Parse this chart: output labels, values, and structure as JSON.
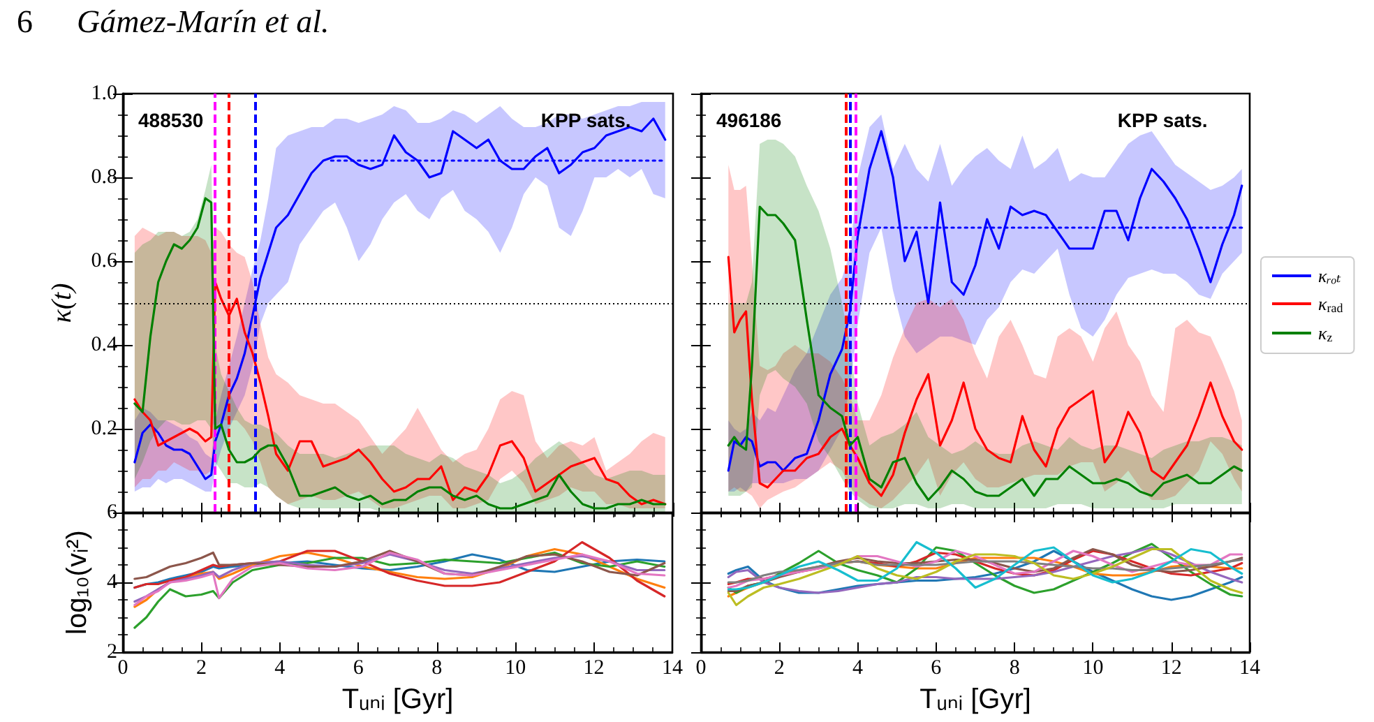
{
  "chart_data": [
    {
      "type": "line",
      "annotations": [
        "488530",
        "KPP sats.",
        "6",
        "Gámez-Marín et al."
      ],
      "ylabel": "κ(t)",
      "x": [
        0.3,
        0.5,
        0.7,
        0.9,
        1.1,
        1.3,
        1.5,
        1.7,
        1.9,
        2.1,
        2.25,
        2.35,
        2.5,
        2.7,
        2.9,
        3.1,
        3.3,
        3.5,
        3.7,
        3.9,
        4.2,
        4.5,
        4.8,
        5.1,
        5.4,
        5.7,
        6.0,
        6.3,
        6.6,
        6.9,
        7.2,
        7.5,
        7.8,
        8.1,
        8.4,
        8.7,
        9.0,
        9.3,
        9.6,
        9.9,
        10.2,
        10.5,
        10.8,
        11.1,
        11.4,
        11.7,
        12.0,
        12.3,
        12.6,
        12.9,
        13.2,
        13.5,
        13.8
      ],
      "series": [
        {
          "color": "#0000ff",
          "values": [
            0.12,
            0.19,
            0.21,
            0.19,
            0.16,
            0.15,
            0.15,
            0.14,
            0.11,
            0.08,
            0.09,
            0.17,
            0.21,
            0.28,
            0.32,
            0.38,
            0.47,
            0.56,
            0.62,
            0.68,
            0.71,
            0.76,
            0.81,
            0.84,
            0.85,
            0.85,
            0.83,
            0.82,
            0.83,
            0.9,
            0.86,
            0.84,
            0.8,
            0.81,
            0.91,
            0.89,
            0.87,
            0.89,
            0.84,
            0.82,
            0.82,
            0.85,
            0.87,
            0.81,
            0.83,
            0.86,
            0.87,
            0.9,
            0.91,
            0.92,
            0.91,
            0.94,
            0.89
          ],
          "lower": [
            0.05,
            0.06,
            0.06,
            0.08,
            0.07,
            0.08,
            0.08,
            0.07,
            0.06,
            0.05,
            0.05,
            0.1,
            0.15,
            0.2,
            0.24,
            0.28,
            0.35,
            0.45,
            0.5,
            0.52,
            0.55,
            0.64,
            0.68,
            0.72,
            0.74,
            0.68,
            0.6,
            0.64,
            0.7,
            0.74,
            0.76,
            0.72,
            0.7,
            0.75,
            0.77,
            0.72,
            0.7,
            0.67,
            0.62,
            0.68,
            0.76,
            0.8,
            0.78,
            0.68,
            0.66,
            0.72,
            0.8,
            0.8,
            0.82,
            0.8,
            0.82,
            0.76,
            0.75
          ],
          "upper": [
            0.22,
            0.25,
            0.24,
            0.22,
            0.22,
            0.21,
            0.2,
            0.18,
            0.17,
            0.14,
            0.13,
            0.22,
            0.28,
            0.35,
            0.42,
            0.5,
            0.58,
            0.65,
            0.75,
            0.87,
            0.9,
            0.91,
            0.92,
            0.92,
            0.94,
            0.94,
            0.93,
            0.94,
            0.95,
            0.97,
            0.96,
            0.93,
            0.93,
            0.94,
            0.96,
            0.95,
            0.93,
            0.95,
            0.97,
            0.94,
            0.92,
            0.92,
            0.93,
            0.95,
            0.95,
            0.94,
            0.95,
            0.96,
            0.97,
            0.97,
            0.98,
            0.98,
            0.98
          ]
        },
        {
          "color": "#ff0000",
          "values": [
            0.27,
            0.24,
            0.22,
            0.16,
            0.17,
            0.18,
            0.19,
            0.2,
            0.19,
            0.17,
            0.18,
            0.55,
            0.51,
            0.47,
            0.51,
            0.43,
            0.38,
            0.31,
            0.23,
            0.14,
            0.1,
            0.17,
            0.17,
            0.11,
            0.12,
            0.13,
            0.15,
            0.12,
            0.08,
            0.05,
            0.06,
            0.08,
            0.08,
            0.11,
            0.03,
            0.06,
            0.05,
            0.09,
            0.16,
            0.17,
            0.13,
            0.05,
            0.07,
            0.09,
            0.11,
            0.12,
            0.13,
            0.08,
            0.07,
            0.04,
            0.02,
            0.03,
            0.02
          ],
          "lower": [
            0.06,
            0.08,
            0.08,
            0.1,
            0.1,
            0.12,
            0.11,
            0.1,
            0.1,
            0.09,
            0.1,
            0.2,
            0.22,
            0.22,
            0.22,
            0.2,
            0.17,
            0.12,
            0.06,
            0.04,
            0.02,
            0.03,
            0.04,
            0.03,
            0.03,
            0.04,
            0.05,
            0.03,
            0.01,
            0.01,
            0.02,
            0.03,
            0.04,
            0.04,
            0.01,
            0.01,
            0.02,
            0.03,
            0.08,
            0.1,
            0.07,
            0.02,
            0.03,
            0.04,
            0.06,
            0.05,
            0.05,
            0.02,
            0.02,
            0.01,
            0.01,
            0.01,
            0.01
          ],
          "upper": [
            0.66,
            0.68,
            0.67,
            0.66,
            0.67,
            0.67,
            0.66,
            0.66,
            0.66,
            0.65,
            0.62,
            0.68,
            0.67,
            0.64,
            0.62,
            0.61,
            0.55,
            0.45,
            0.37,
            0.33,
            0.31,
            0.28,
            0.27,
            0.26,
            0.26,
            0.24,
            0.22,
            0.18,
            0.14,
            0.17,
            0.2,
            0.25,
            0.2,
            0.15,
            0.12,
            0.14,
            0.15,
            0.2,
            0.27,
            0.29,
            0.28,
            0.17,
            0.13,
            0.16,
            0.17,
            0.16,
            0.18,
            0.1,
            0.12,
            0.14,
            0.17,
            0.19,
            0.18
          ]
        },
        {
          "color": "#008000",
          "values": [
            0.26,
            0.24,
            0.42,
            0.55,
            0.6,
            0.64,
            0.63,
            0.65,
            0.68,
            0.75,
            0.74,
            0.2,
            0.21,
            0.15,
            0.12,
            0.12,
            0.13,
            0.15,
            0.16,
            0.16,
            0.11,
            0.04,
            0.04,
            0.05,
            0.06,
            0.04,
            0.03,
            0.04,
            0.02,
            0.03,
            0.03,
            0.05,
            0.06,
            0.06,
            0.04,
            0.03,
            0.04,
            0.02,
            0.01,
            0.01,
            0.02,
            0.03,
            0.04,
            0.09,
            0.05,
            0.02,
            0.01,
            0.01,
            0.02,
            0.02,
            0.03,
            0.02,
            0.02
          ],
          "lower": [
            0.08,
            0.12,
            0.17,
            0.2,
            0.22,
            0.22,
            0.21,
            0.21,
            0.22,
            0.22,
            0.2,
            0.12,
            0.1,
            0.07,
            0.07,
            0.06,
            0.06,
            0.07,
            0.06,
            0.04,
            0.02,
            0.01,
            0.01,
            0.01,
            0.01,
            0.01,
            0.01,
            0.01,
            0,
            0,
            0,
            0,
            0,
            0,
            0,
            0,
            0,
            0,
            0,
            0,
            0,
            0,
            0,
            0,
            0,
            0,
            0,
            0,
            0,
            0,
            0,
            0,
            0
          ],
          "upper": [
            0.62,
            0.64,
            0.65,
            0.67,
            0.67,
            0.67,
            0.66,
            0.67,
            0.7,
            0.77,
            0.83,
            0.4,
            0.33,
            0.29,
            0.25,
            0.22,
            0.21,
            0.21,
            0.2,
            0.19,
            0.16,
            0.14,
            0.14,
            0.14,
            0.13,
            0.14,
            0.15,
            0.16,
            0.16,
            0.16,
            0.14,
            0.13,
            0.12,
            0.14,
            0.13,
            0.11,
            0.1,
            0.09,
            0.07,
            0.08,
            0.1,
            0.13,
            0.15,
            0.17,
            0.15,
            0.12,
            0.09,
            0.08,
            0.09,
            0.1,
            0.1,
            0.09,
            0.09
          ]
        },
        {
          "color": "#0000ff",
          "line_style": "dotted",
          "x": [
            5.3,
            13.8
          ],
          "values": [
            0.84,
            0.84
          ]
        }
      ],
      "xlim": [
        0,
        14
      ],
      "xticks": [
        0,
        2,
        4,
        6,
        8,
        10,
        12,
        14
      ],
      "ylim": [
        0,
        1
      ],
      "yticks": [
        {
          "value": 0,
          "label": null
        },
        0.2,
        0.4,
        0.6,
        0.8,
        {
          "value": 1,
          "label": "1.0"
        }
      ],
      "tick_labels": "y",
      "ref_lines": [
        {
          "axis": "y",
          "value": 0.5,
          "color": "#000000",
          "line_style": "dotted"
        },
        {
          "axis": "x",
          "value": 2.35,
          "color": "#ff00ff",
          "line_style": "dashed"
        },
        {
          "axis": "x",
          "value": 2.7,
          "color": "#ff0000",
          "line_style": "dashed"
        },
        {
          "axis": "x",
          "value": 3.38,
          "color": "#0000ff",
          "line_style": "dashed"
        }
      ]
    },
    {
      "type": "line",
      "annotations": [
        "496186",
        "KPP sats."
      ],
      "legend": "right",
      "x": [
        0.7,
        0.85,
        1.0,
        1.15,
        1.3,
        1.5,
        1.7,
        1.9,
        2.1,
        2.4,
        2.7,
        3.0,
        3.3,
        3.6,
        3.8,
        4.0,
        4.3,
        4.6,
        4.9,
        5.2,
        5.5,
        5.8,
        6.1,
        6.4,
        6.7,
        7.0,
        7.3,
        7.6,
        7.9,
        8.2,
        8.5,
        8.8,
        9.1,
        9.4,
        9.7,
        10.0,
        10.3,
        10.6,
        10.9,
        11.2,
        11.5,
        11.8,
        12.1,
        12.4,
        12.7,
        13.0,
        13.3,
        13.6,
        13.8
      ],
      "series": [
        {
          "name": "κᵣₒₜ",
          "color": "#0000ff",
          "values": [
            0.1,
            0.17,
            0.16,
            0.18,
            0.17,
            0.11,
            0.12,
            0.12,
            0.1,
            0.13,
            0.14,
            0.22,
            0.33,
            0.39,
            0.48,
            0.66,
            0.82,
            0.91,
            0.8,
            0.6,
            0.67,
            0.5,
            0.74,
            0.55,
            0.52,
            0.59,
            0.7,
            0.63,
            0.73,
            0.71,
            0.72,
            0.71,
            0.67,
            0.63,
            0.63,
            0.63,
            0.72,
            0.72,
            0.65,
            0.75,
            0.82,
            0.79,
            0.75,
            0.7,
            0.63,
            0.55,
            0.64,
            0.71,
            0.78
          ],
          "lower": [
            0.05,
            0.05,
            0.06,
            0.05,
            0.07,
            0.07,
            0.07,
            0.07,
            0.07,
            0.08,
            0.08,
            0.1,
            0.15,
            0.2,
            0.3,
            0.45,
            0.62,
            0.68,
            0.53,
            0.42,
            0.38,
            0.4,
            0.42,
            0.42,
            0.41,
            0.4,
            0.46,
            0.49,
            0.55,
            0.58,
            0.57,
            0.6,
            0.63,
            0.52,
            0.44,
            0.42,
            0.46,
            0.52,
            0.56,
            0.57,
            0.58,
            0.57,
            0.57,
            0.55,
            0.52,
            0.51,
            0.57,
            0.6,
            0.62
          ],
          "upper": [
            0.22,
            0.2,
            0.19,
            0.2,
            0.24,
            0.22,
            0.25,
            0.24,
            0.28,
            0.34,
            0.38,
            0.45,
            0.52,
            0.56,
            0.62,
            0.8,
            0.92,
            0.95,
            0.82,
            0.88,
            0.82,
            0.79,
            0.88,
            0.78,
            0.82,
            0.85,
            0.87,
            0.84,
            0.82,
            0.9,
            0.82,
            0.84,
            0.87,
            0.79,
            0.81,
            0.8,
            0.8,
            0.84,
            0.88,
            0.9,
            0.91,
            0.87,
            0.83,
            0.81,
            0.79,
            0.77,
            0.78,
            0.8,
            0.82
          ]
        },
        {
          "name": "κ$_{rad}$",
          "color": "#ff0000",
          "values": [
            0.61,
            0.43,
            0.46,
            0.48,
            0.27,
            0.07,
            0.06,
            0.08,
            0.1,
            0.1,
            0.13,
            0.14,
            0.18,
            0.2,
            0.16,
            0.13,
            0.07,
            0.04,
            0.09,
            0.19,
            0.27,
            0.33,
            0.16,
            0.22,
            0.31,
            0.2,
            0.15,
            0.13,
            0.12,
            0.23,
            0.15,
            0.11,
            0.2,
            0.25,
            0.27,
            0.29,
            0.12,
            0.16,
            0.24,
            0.19,
            0.1,
            0.08,
            0.12,
            0.16,
            0.23,
            0.31,
            0.23,
            0.17,
            0.15
          ],
          "lower": [
            0.05,
            0.06,
            0.05,
            0.05,
            0.04,
            0.01,
            0.03,
            0.04,
            0.05,
            0.06,
            0.08,
            0.1,
            0.12,
            0.1,
            0.06,
            0.04,
            0.02,
            0.01,
            0.03,
            0.06,
            0.09,
            0.13,
            0.04,
            0.09,
            0.12,
            0.08,
            0.06,
            0.06,
            0.07,
            0.08,
            0.09,
            0.09,
            0.09,
            0.11,
            0.12,
            0.12,
            0.05,
            0.07,
            0.1,
            0.06,
            0.03,
            0.03,
            0.04,
            0.07,
            0.1,
            0.17,
            0.14,
            0.08,
            0.05
          ],
          "upper": [
            0.83,
            0.77,
            0.77,
            0.78,
            0.6,
            0.35,
            0.34,
            0.35,
            0.38,
            0.4,
            0.38,
            0.38,
            0.36,
            0.32,
            0.28,
            0.22,
            0.22,
            0.28,
            0.37,
            0.44,
            0.5,
            0.51,
            0.49,
            0.51,
            0.46,
            0.38,
            0.32,
            0.42,
            0.46,
            0.4,
            0.33,
            0.32,
            0.42,
            0.44,
            0.42,
            0.36,
            0.44,
            0.48,
            0.4,
            0.36,
            0.28,
            0.24,
            0.44,
            0.46,
            0.43,
            0.42,
            0.36,
            0.29,
            0.22
          ]
        },
        {
          "name": "κ$_{z}$",
          "color": "#008000",
          "values": [
            0.16,
            0.18,
            0.16,
            0.15,
            0.35,
            0.73,
            0.71,
            0.71,
            0.69,
            0.65,
            0.46,
            0.28,
            0.25,
            0.23,
            0.16,
            0.18,
            0.08,
            0.06,
            0.12,
            0.13,
            0.07,
            0.03,
            0.06,
            0.1,
            0.08,
            0.05,
            0.04,
            0.04,
            0.06,
            0.08,
            0.04,
            0.08,
            0.08,
            0.11,
            0.09,
            0.07,
            0.07,
            0.08,
            0.07,
            0.05,
            0.04,
            0.07,
            0.08,
            0.09,
            0.07,
            0.07,
            0.09,
            0.11,
            0.1
          ],
          "lower": [
            0.04,
            0.04,
            0.04,
            0.05,
            0.06,
            0.28,
            0.33,
            0.34,
            0.32,
            0.3,
            0.26,
            0.17,
            0.13,
            0.08,
            0.05,
            0.03,
            0.01,
            0.01,
            0.01,
            0.02,
            0.02,
            0.01,
            0.01,
            0.02,
            0.02,
            0.01,
            0.01,
            0.01,
            0.01,
            0.01,
            0.01,
            0.01,
            0.02,
            0.02,
            0.02,
            0.01,
            0.01,
            0.01,
            0.01,
            0.01,
            0.01,
            0.01,
            0.02,
            0.02,
            0.02,
            0.02,
            0.02,
            0.02,
            0.02
          ],
          "upper": [
            0.5,
            0.5,
            0.5,
            0.5,
            0.55,
            0.88,
            0.89,
            0.89,
            0.88,
            0.85,
            0.78,
            0.72,
            0.63,
            0.5,
            0.4,
            0.26,
            0.16,
            0.18,
            0.19,
            0.21,
            0.24,
            0.18,
            0.16,
            0.14,
            0.15,
            0.17,
            0.15,
            0.14,
            0.14,
            0.16,
            0.17,
            0.16,
            0.15,
            0.18,
            0.16,
            0.15,
            0.16,
            0.16,
            0.15,
            0.14,
            0.13,
            0.15,
            0.16,
            0.17,
            0.17,
            0.18,
            0.18,
            0.17,
            0.16
          ]
        },
        {
          "color": "#0000ff",
          "line_style": "dotted",
          "x": [
            4.0,
            13.8
          ],
          "values": [
            0.68,
            0.68
          ]
        }
      ],
      "xlim": [
        0,
        14
      ],
      "xticks": [
        0,
        2,
        4,
        6,
        8,
        10,
        12,
        14
      ],
      "ylim": [
        0,
        1
      ],
      "yticks": [
        0,
        0.2,
        0.4,
        0.6,
        0.8,
        1
      ],
      "tick_labels": false,
      "ref_lines": [
        {
          "axis": "y",
          "value": 0.5,
          "color": "#000000",
          "line_style": "dotted"
        },
        {
          "axis": "x",
          "value": 3.69,
          "color": "#ff0000",
          "line_style": "dashed"
        },
        {
          "axis": "x",
          "value": 3.8,
          "color": "#0000ff",
          "line_style": "dashed"
        },
        {
          "axis": "x",
          "value": 3.95,
          "color": "#ff00ff",
          "line_style": "dashed"
        }
      ]
    },
    {
      "type": "line",
      "xlabel": "Tᵤₙᵢ [Gyr]",
      "ylabel": "log₁₀(vᵢ²)",
      "x": [
        0.3,
        0.6,
        0.9,
        1.2,
        1.6,
        2.0,
        2.3,
        2.45,
        2.8,
        3.3,
        4.0,
        4.7,
        5.4,
        6.1,
        6.8,
        7.5,
        8.2,
        8.9,
        9.6,
        10.3,
        11.0,
        11.7,
        12.4,
        13.1,
        13.8
      ],
      "series": [
        {
          "color": "#1f77b4",
          "values": [
            3.85,
            3.95,
            4.0,
            4.1,
            4.2,
            4.3,
            4.45,
            4.4,
            4.45,
            4.5,
            4.55,
            4.6,
            4.5,
            4.4,
            4.35,
            4.45,
            4.6,
            4.8,
            4.65,
            4.35,
            4.3,
            4.45,
            4.6,
            4.65,
            4.6
          ]
        },
        {
          "color": "#ff7f0e",
          "values": [
            3.3,
            3.5,
            3.8,
            4.0,
            4.15,
            4.25,
            4.3,
            4.1,
            4.25,
            4.5,
            4.75,
            4.85,
            4.7,
            4.45,
            4.3,
            4.15,
            4.1,
            4.15,
            4.4,
            4.75,
            4.95,
            4.8,
            4.45,
            4.1,
            3.85
          ]
        },
        {
          "color": "#2ca02c",
          "values": [
            2.7,
            3.0,
            3.45,
            3.8,
            3.6,
            3.65,
            3.75,
            3.55,
            4.0,
            4.35,
            4.5,
            4.55,
            4.7,
            4.7,
            4.5,
            4.55,
            4.65,
            4.6,
            4.55,
            4.7,
            4.85,
            4.55,
            4.45,
            4.6,
            4.45
          ]
        },
        {
          "color": "#d62728",
          "values": [
            3.85,
            3.95,
            3.95,
            4.05,
            4.15,
            4.35,
            4.5,
            4.45,
            4.5,
            4.55,
            4.6,
            4.9,
            4.9,
            4.6,
            4.25,
            4.05,
            3.9,
            3.9,
            4.0,
            4.3,
            4.6,
            5.15,
            4.7,
            4.05,
            3.6
          ]
        },
        {
          "color": "#9467bd",
          "values": [
            3.45,
            3.6,
            3.8,
            4.0,
            4.1,
            4.2,
            4.3,
            4.15,
            4.35,
            4.55,
            4.6,
            4.5,
            4.45,
            4.55,
            4.8,
            4.6,
            4.35,
            4.25,
            4.4,
            4.55,
            4.7,
            4.75,
            4.6,
            4.35,
            4.35
          ]
        },
        {
          "color": "#8c564b",
          "values": [
            4.1,
            4.15,
            4.3,
            4.45,
            4.55,
            4.7,
            4.85,
            4.5,
            4.5,
            4.55,
            4.5,
            4.45,
            4.45,
            4.6,
            4.9,
            4.6,
            4.25,
            4.2,
            4.45,
            4.75,
            4.8,
            4.6,
            4.3,
            4.2,
            4.55
          ]
        },
        {
          "color": "#e377c2",
          "values": [
            3.35,
            3.6,
            3.75,
            4.0,
            4.05,
            4.15,
            4.25,
            3.55,
            4.1,
            4.45,
            4.55,
            4.4,
            4.35,
            4.45,
            4.85,
            4.65,
            4.25,
            4.2,
            4.35,
            4.5,
            4.65,
            4.8,
            4.6,
            4.25,
            4.2
          ]
        }
      ],
      "xlim": [
        0,
        14
      ],
      "xticks": [
        0,
        2,
        4,
        6,
        8,
        10,
        12,
        14
      ],
      "ylim": [
        2,
        6
      ],
      "yticks": [
        2,
        4,
        6
      ]
    },
    {
      "type": "line",
      "xlabel": "Tᵤₙᵢ [Gyr]",
      "x": [
        0.7,
        0.9,
        1.2,
        1.6,
        2.0,
        2.5,
        3.0,
        3.5,
        4.0,
        4.5,
        5.0,
        5.5,
        6.0,
        6.5,
        7.0,
        7.5,
        8.0,
        8.5,
        9.0,
        9.5,
        10.0,
        10.5,
        11.0,
        11.5,
        12.0,
        12.5,
        13.0,
        13.5,
        13.8
      ],
      "series": [
        {
          "color": "#1f77b4",
          "values": [
            4.25,
            4.35,
            4.45,
            4.05,
            3.85,
            3.7,
            3.7,
            3.8,
            3.9,
            3.95,
            4.0,
            4.05,
            4.05,
            4.1,
            4.15,
            4.25,
            4.4,
            4.6,
            4.9,
            4.6,
            4.3,
            4.05,
            3.8,
            3.6,
            3.5,
            3.6,
            3.8,
            4.0,
            4.15
          ]
        },
        {
          "color": "#ff7f0e",
          "values": [
            3.6,
            3.7,
            3.85,
            4.0,
            4.2,
            4.35,
            4.45,
            4.55,
            4.6,
            4.5,
            4.45,
            4.4,
            4.4,
            4.55,
            4.7,
            4.7,
            4.7,
            4.7,
            4.6,
            4.45,
            4.25,
            4.2,
            4.2,
            4.3,
            4.45,
            4.5,
            4.45,
            4.4,
            4.4
          ]
        },
        {
          "color": "#2ca02c",
          "values": [
            3.85,
            3.7,
            3.9,
            4.0,
            4.25,
            4.55,
            4.9,
            4.55,
            4.35,
            4.2,
            4.0,
            4.4,
            5.0,
            4.9,
            4.55,
            4.2,
            3.9,
            3.7,
            3.8,
            4.05,
            4.3,
            4.55,
            4.85,
            5.1,
            4.7,
            4.3,
            3.95,
            3.65,
            3.6
          ]
        },
        {
          "color": "#d62728",
          "values": [
            3.95,
            4.0,
            4.1,
            4.1,
            4.2,
            4.3,
            4.4,
            4.55,
            4.6,
            4.55,
            4.45,
            4.6,
            4.85,
            4.8,
            4.6,
            4.4,
            4.25,
            4.2,
            4.35,
            4.65,
            4.9,
            4.8,
            4.6,
            4.4,
            4.25,
            4.2,
            4.3,
            4.4,
            4.55
          ]
        },
        {
          "color": "#9467bd",
          "values": [
            4.15,
            4.3,
            4.35,
            4.0,
            3.85,
            3.75,
            3.7,
            3.75,
            3.85,
            3.95,
            4.0,
            4.15,
            4.15,
            4.1,
            4.1,
            4.1,
            4.15,
            4.2,
            4.3,
            4.45,
            4.6,
            4.75,
            4.85,
            5.0,
            4.8,
            4.55,
            4.3,
            4.1,
            4.0
          ]
        },
        {
          "color": "#8c564b",
          "values": [
            3.75,
            3.75,
            3.9,
            4.0,
            4.15,
            4.3,
            4.45,
            4.6,
            4.7,
            4.6,
            4.55,
            4.55,
            4.6,
            4.65,
            4.65,
            4.55,
            4.4,
            4.3,
            4.4,
            4.7,
            4.95,
            4.8,
            4.5,
            4.35,
            4.3,
            4.35,
            4.45,
            4.6,
            4.7
          ]
        },
        {
          "color": "#e377c2",
          "values": [
            3.85,
            3.9,
            4.05,
            4.1,
            4.2,
            4.3,
            4.4,
            4.5,
            4.75,
            4.75,
            4.6,
            4.45,
            4.6,
            4.9,
            4.75,
            4.5,
            4.25,
            4.3,
            4.6,
            4.9,
            4.75,
            4.5,
            4.3,
            4.45,
            4.6,
            4.5,
            4.5,
            4.8,
            4.8
          ]
        },
        {
          "color": "#7f7f7f",
          "values": [
            4.0,
            4.0,
            4.05,
            4.2,
            4.3,
            4.35,
            4.45,
            4.55,
            4.6,
            4.5,
            4.5,
            4.5,
            4.5,
            4.55,
            4.6,
            4.6,
            4.6,
            4.55,
            4.5,
            4.45,
            4.4,
            4.4,
            4.35,
            4.35,
            4.4,
            4.45,
            4.5,
            4.6,
            4.65
          ]
        },
        {
          "color": "#bcbd22",
          "values": [
            3.7,
            3.35,
            3.6,
            3.85,
            3.95,
            4.1,
            4.3,
            4.5,
            4.75,
            4.4,
            4.2,
            4.1,
            4.3,
            4.6,
            4.8,
            4.8,
            4.75,
            4.55,
            4.2,
            4.1,
            4.25,
            4.45,
            4.7,
            4.95,
            4.95,
            4.5,
            4.05,
            3.8,
            3.7
          ]
        },
        {
          "color": "#17becf",
          "values": [
            3.8,
            3.8,
            3.85,
            4.0,
            4.2,
            4.45,
            4.6,
            4.35,
            4.05,
            4.05,
            4.4,
            5.15,
            4.85,
            4.4,
            3.85,
            4.1,
            4.5,
            4.9,
            5.0,
            4.6,
            4.2,
            4.0,
            4.1,
            4.3,
            4.6,
            4.95,
            4.85,
            4.45,
            4.25
          ]
        }
      ],
      "xlim": [
        0,
        14
      ],
      "xticks": [
        0,
        2,
        4,
        6,
        8,
        10,
        12,
        14
      ],
      "ylim": [
        2,
        6
      ],
      "yticks": [
        2,
        4,
        6
      ],
      "tick_labels": "x"
    }
  ]
}
